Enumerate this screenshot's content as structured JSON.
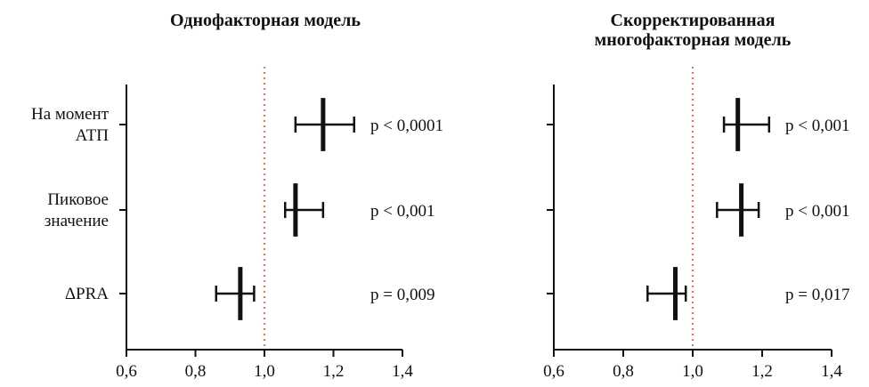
{
  "chart_data": [
    {
      "type": "forest",
      "title_lines": [
        "Однофакторная модель"
      ],
      "xlim": [
        0.6,
        1.4
      ],
      "x_ticks": [
        0.6,
        0.8,
        1.0,
        1.2,
        1.4
      ],
      "x_tick_labels": [
        "0,6",
        "0,8",
        "1,0",
        "1,2",
        "1,4"
      ],
      "reference_line": 1.0,
      "reference_color": "#e8736a",
      "categories": [
        {
          "label_lines": [
            "На момент",
            "АТП"
          ],
          "estimate": 1.17,
          "ci_low": 1.09,
          "ci_high": 1.26,
          "p": "p < 0,0001"
        },
        {
          "label_lines": [
            "Пиковое",
            "значение"
          ],
          "estimate": 1.09,
          "ci_low": 1.06,
          "ci_high": 1.17,
          "p": "p < 0,001"
        },
        {
          "label_lines": [
            "ΔPRA"
          ],
          "estimate": 0.93,
          "ci_low": 0.86,
          "ci_high": 0.97,
          "p": "p = 0,009"
        }
      ]
    },
    {
      "type": "forest",
      "title_lines": [
        "Скорректированная",
        "многофакторная модель"
      ],
      "xlim": [
        0.6,
        1.4
      ],
      "x_ticks": [
        0.6,
        0.8,
        1.0,
        1.2,
        1.4
      ],
      "x_tick_labels": [
        "0,6",
        "0,8",
        "1,0",
        "1,2",
        "1,4"
      ],
      "reference_line": 1.0,
      "reference_color": "#e8736a",
      "categories": [
        {
          "estimate": 1.13,
          "ci_low": 1.09,
          "ci_high": 1.22,
          "p": "p < 0,001"
        },
        {
          "estimate": 1.14,
          "ci_low": 1.07,
          "ci_high": 1.19,
          "p": "p < 0,001"
        },
        {
          "estimate": 0.95,
          "ci_low": 0.87,
          "ci_high": 0.98,
          "p": "p = 0,017"
        }
      ]
    }
  ]
}
